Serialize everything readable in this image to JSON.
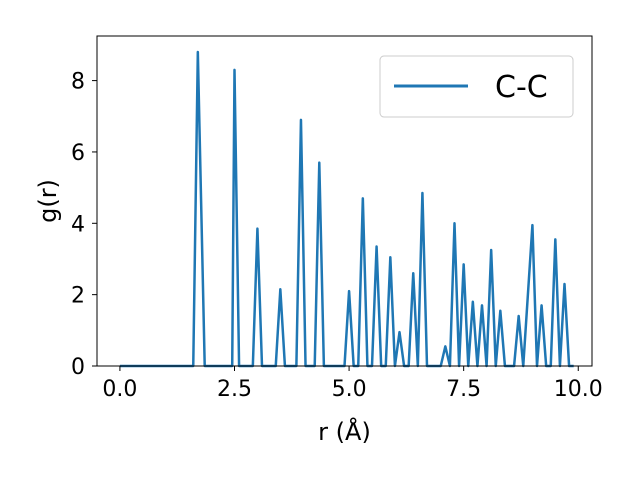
{
  "chart_data": {
    "type": "line",
    "xlabel": "r (Å)",
    "ylabel": "g(r)",
    "xlim": [
      -0.5,
      10.3
    ],
    "ylim": [
      0,
      9.25
    ],
    "x_ticks": [
      0.0,
      2.5,
      5.0,
      7.5,
      10.0
    ],
    "x_tick_labels": [
      "0.0",
      "2.5",
      "5.0",
      "7.5",
      "10.0"
    ],
    "y_ticks": [
      0,
      2,
      4,
      6,
      8
    ],
    "y_tick_labels": [
      "0",
      "2",
      "4",
      "6",
      "8"
    ],
    "grid": false,
    "legend_position": "top-right",
    "series": [
      {
        "name": "C-C",
        "color": "#1f77b4",
        "x": [
          0.0,
          1.6,
          1.7,
          1.85,
          2.45,
          2.5,
          2.6,
          2.9,
          3.0,
          3.1,
          3.4,
          3.5,
          3.6,
          3.85,
          3.95,
          4.05,
          4.25,
          4.35,
          4.45,
          4.9,
          5.0,
          5.1,
          5.2,
          5.3,
          5.4,
          5.5,
          5.6,
          5.7,
          5.8,
          5.9,
          6.0,
          6.1,
          6.2,
          6.3,
          6.4,
          6.5,
          6.6,
          6.7,
          7.0,
          7.1,
          7.2,
          7.3,
          7.4,
          7.5,
          7.6,
          7.7,
          7.8,
          7.9,
          8.0,
          8.1,
          8.2,
          8.3,
          8.4,
          8.6,
          8.7,
          8.8,
          9.0,
          9.1,
          9.2,
          9.3,
          9.4,
          9.5,
          9.6,
          9.7,
          9.8,
          9.9
        ],
        "y": [
          0.0,
          0.0,
          8.8,
          0.0,
          0.0,
          8.3,
          0.0,
          0.0,
          3.85,
          0.0,
          0.0,
          2.15,
          0.0,
          0.0,
          6.9,
          0.0,
          0.0,
          5.7,
          0.0,
          0.0,
          2.1,
          0.0,
          0.0,
          4.7,
          0.0,
          0.0,
          3.35,
          0.0,
          0.0,
          3.05,
          0.0,
          0.95,
          0.0,
          0.0,
          2.6,
          0.0,
          4.85,
          0.0,
          0.0,
          0.55,
          0.0,
          4.0,
          0.0,
          2.85,
          0.0,
          1.8,
          0.0,
          1.7,
          0.0,
          3.25,
          0.0,
          1.55,
          0.0,
          0.0,
          1.4,
          0.0,
          3.95,
          0.0,
          1.7,
          0.0,
          0.0,
          3.55,
          0.0,
          2.3,
          0.0,
          0.0
        ]
      }
    ]
  }
}
